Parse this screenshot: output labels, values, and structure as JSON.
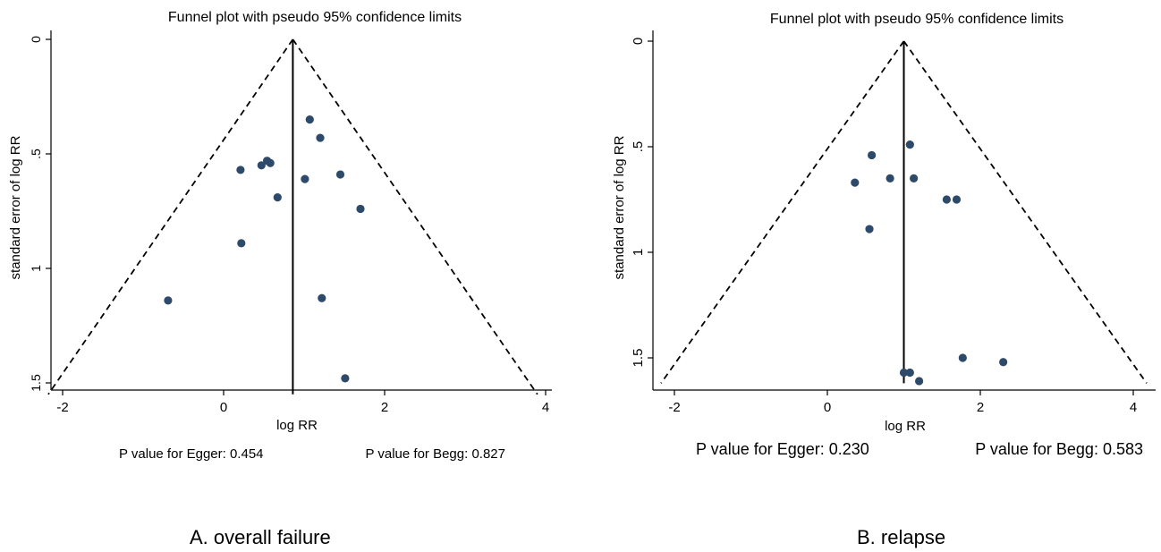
{
  "chart_data": [
    {
      "type": "scatter",
      "title": "Funnel plot with pseudo 95% confidence limits",
      "xlabel": "log RR",
      "ylabel": "standard error of log RR",
      "y_reversed": true,
      "xlim": [
        -2.2,
        4.1
      ],
      "ylim": [
        0,
        1.55
      ],
      "xticks": [
        "-2",
        "0",
        "2",
        "4"
      ],
      "yticks": [
        "0",
        ".5",
        "1",
        "1.5"
      ],
      "pooled_log_rr": 0.86,
      "funnel_limits": "pseudo 95% (±1.96 × SE)",
      "points": [
        {
          "x": 1.07,
          "y": 0.35
        },
        {
          "x": 1.2,
          "y": 0.43
        },
        {
          "x": 0.54,
          "y": 0.53
        },
        {
          "x": 0.58,
          "y": 0.54
        },
        {
          "x": 0.47,
          "y": 0.55
        },
        {
          "x": 0.21,
          "y": 0.57
        },
        {
          "x": 1.45,
          "y": 0.59
        },
        {
          "x": 1.01,
          "y": 0.61
        },
        {
          "x": 0.67,
          "y": 0.69
        },
        {
          "x": 1.7,
          "y": 0.74
        },
        {
          "x": 0.22,
          "y": 0.89
        },
        {
          "x": -0.69,
          "y": 1.14
        },
        {
          "x": 1.22,
          "y": 1.13
        },
        {
          "x": 1.51,
          "y": 1.48
        }
      ],
      "notes": [
        "P value for Egger: 0.454",
        "P value for Begg: 0.827"
      ],
      "caption": "A. overall failure",
      "colors": {
        "point": "#2e4a6b",
        "line": "#000000"
      }
    },
    {
      "type": "scatter",
      "title": "Funnel plot with pseudo 95% confidence limits",
      "xlabel": "log RR",
      "ylabel": "standard error of log RR",
      "y_reversed": true,
      "xlim": [
        -2.35,
        4.3
      ],
      "ylim": [
        0,
        1.62
      ],
      "xticks": [
        "-2",
        "0",
        "2",
        "4"
      ],
      "yticks": [
        "0",
        ".5",
        "1",
        "1.5"
      ],
      "pooled_log_rr": 1.0,
      "funnel_limits": "pseudo 95% (±1.96 × SE)",
      "points": [
        {
          "x": 1.08,
          "y": 0.49
        },
        {
          "x": 0.58,
          "y": 0.54
        },
        {
          "x": 0.36,
          "y": 0.67
        },
        {
          "x": 0.82,
          "y": 0.65
        },
        {
          "x": 1.13,
          "y": 0.65
        },
        {
          "x": 1.56,
          "y": 0.75
        },
        {
          "x": 1.69,
          "y": 0.75
        },
        {
          "x": 0.55,
          "y": 0.89
        },
        {
          "x": 1.77,
          "y": 1.5
        },
        {
          "x": 2.3,
          "y": 1.52
        },
        {
          "x": 1.0,
          "y": 1.57
        },
        {
          "x": 1.08,
          "y": 1.57
        },
        {
          "x": 1.2,
          "y": 1.61
        }
      ],
      "notes": [
        "P value for Egger: 0.230",
        "P value for Begg: 0.583"
      ],
      "caption": "B. relapse",
      "colors": {
        "point": "#2e4a6b",
        "line": "#000000"
      }
    }
  ]
}
